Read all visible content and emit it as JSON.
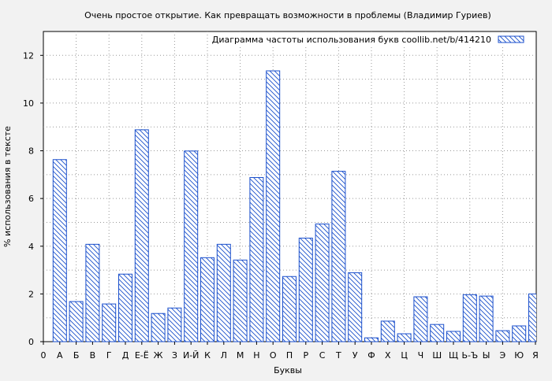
{
  "chart_data": {
    "type": "bar",
    "title": "Очень простое открытие. Как превращать возможности в проблемы (Владимир Гуриев)",
    "xlabel": "Буквы",
    "ylabel": "% использования в тексте",
    "legend": {
      "label": "Диаграмма частоты использования букв  coollib.net/b/414210",
      "placement": "top-right"
    },
    "x_origin_label": "0",
    "categories": [
      "А",
      "Б",
      "В",
      "Г",
      "Д",
      "Е-Ё",
      "Ж",
      "З",
      "И-Й",
      "К",
      "Л",
      "М",
      "Н",
      "О",
      "П",
      "Р",
      "С",
      "Т",
      "У",
      "Ф",
      "Х",
      "Ц",
      "Ч",
      "Ш",
      "Щ",
      "Ь-Ъ",
      "Ы",
      "Э",
      "Ю",
      "Я"
    ],
    "values": [
      7.63,
      1.68,
      4.08,
      1.58,
      2.83,
      8.88,
      1.18,
      1.41,
      7.99,
      3.52,
      4.08,
      3.42,
      6.88,
      11.35,
      2.73,
      4.34,
      4.93,
      7.14,
      2.89,
      0.16,
      0.86,
      0.33,
      1.88,
      0.72,
      0.43,
      1.97,
      1.91,
      0.46,
      0.66,
      2.0
    ],
    "ylim": [
      0,
      13
    ],
    "yticks": [
      0,
      2,
      4,
      6,
      8,
      10,
      12
    ],
    "grid": true,
    "colors": {
      "bar_stroke": "#1a4fcc",
      "hatch": "#1a4fcc",
      "background": "#f2f2f2",
      "plot_background": "#ffffff"
    }
  }
}
